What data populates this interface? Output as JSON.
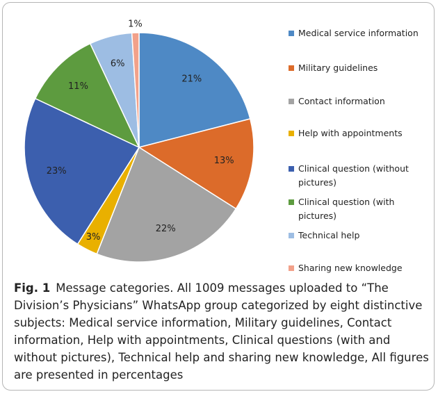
{
  "chart_data": {
    "type": "pie",
    "categories": [
      "Medical service information",
      "Military guidelines",
      "Contact information",
      "Help with appointments",
      "Clinical question (without pictures)",
      "Clinical question (with pictures)",
      "Technical help",
      "Sharing new knowledge"
    ],
    "values": [
      21,
      13,
      22,
      3,
      23,
      11,
      6,
      1
    ],
    "value_labels": [
      "21%",
      "13%",
      "22%",
      "3%",
      "23%",
      "11%",
      "6%",
      "1%"
    ],
    "colors": [
      "#4e89c5",
      "#dc6b2a",
      "#a3a3a3",
      "#e9b000",
      "#3c5fae",
      "#5d9b3f",
      "#9dbde3",
      "#f2a18a"
    ],
    "legend": "right"
  },
  "caption": {
    "label": "Fig. 1",
    "text": "Message categories. All 1009 messages uploaded to “The Division’s Physicians” WhatsApp group categorized by eight distinctive subjects: Medical service information, Military guidelines, Contact information, Help with appointments, Clinical questions (with and without pictures), Technical help and sharing new knowledge, All figures are presented in percentages"
  }
}
